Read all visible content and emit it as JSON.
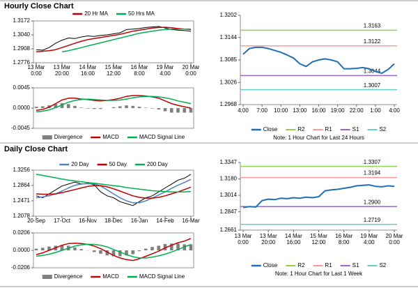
{
  "sections": [
    {
      "title": "Hourly Close Chart"
    },
    {
      "title": "Daily Close Chart"
    }
  ],
  "chart_data": [
    {
      "type": "line",
      "categories": [
        "13 Mar\n0:00",
        null,
        null,
        null,
        "13 Mar\n20:00",
        null,
        null,
        null,
        "14 Mar\n16:00",
        null,
        null,
        null,
        "15 Mar\n12:00",
        null,
        null,
        null,
        "16 Mar\n8:00",
        null,
        null,
        null,
        "19 Mar\n4:00",
        null,
        null,
        null,
        "20 Mar\n0:00"
      ],
      "values": [
        1.29,
        1.2895,
        1.292,
        1.296,
        1.299,
        1.301,
        1.3005,
        1.302,
        1.303,
        1.3025,
        1.3035,
        1.304,
        1.305,
        1.306,
        1.309,
        1.3095,
        1.31,
        1.311,
        1.3115,
        1.312,
        1.3105,
        1.309,
        1.3085,
        1.308,
        1.3075
      ],
      "color": "#000000",
      "series": [
        {
          "name": "20 Hr MA",
          "color": "#c00000",
          "values": [
            1.288,
            1.2885,
            1.289,
            1.29,
            1.292,
            1.294,
            1.296,
            1.298,
            1.2995,
            1.3005,
            1.3015,
            1.3025,
            1.3035,
            1.3045,
            1.306,
            1.3075,
            1.3085,
            1.3095,
            1.3105,
            1.311,
            1.3112,
            1.3108,
            1.31,
            1.3095,
            1.309
          ]
        },
        {
          "name": "50 Hrs MA",
          "color": "#00b050",
          "values": [
            null,
            null,
            null,
            null,
            1.288,
            1.289,
            1.2905,
            1.292,
            1.2935,
            1.295,
            1.2965,
            1.298,
            1.2995,
            1.301,
            1.3025,
            1.304,
            1.3055,
            1.3065,
            1.3075,
            1.3085,
            1.309,
            1.3095,
            1.3095,
            1.3095,
            1.3095
          ]
        }
      ],
      "ylim": [
        1.2776,
        1.3172
      ],
      "yticks": [
        1.2776,
        1.2908,
        {
          "value": 1.304,
          "label": "1.3040"
        },
        1.3172
      ]
    },
    {
      "type": "combo",
      "series": [
        {
          "name": "Divergence",
          "kind": "bar",
          "color": "#808080",
          "values": [
            0.0003,
            0.0004,
            0.0006,
            0.0009,
            0.0011,
            0.0009,
            0.0005,
            0.0001,
            -0.0001,
            -0.0002,
            -0.0002,
            0,
            0.0002,
            0.0004,
            0.0006,
            0.0005,
            0.0003,
            0.0001,
            -0.0001,
            -0.0003,
            -0.0007,
            -0.001,
            -0.001,
            -0.001,
            -0.001
          ]
        },
        {
          "name": "MACD",
          "kind": "line",
          "color": "#c00000",
          "values": [
            -0.0005,
            -0.0003,
            0.0002,
            0.001,
            0.0018,
            0.0022,
            0.0022,
            0.002,
            0.0019,
            0.0017,
            0.0016,
            0.0017,
            0.0019,
            0.0022,
            0.0026,
            0.0028,
            0.0028,
            0.0027,
            0.0025,
            0.0022,
            0.0016,
            0.001,
            0.0006,
            0.0003,
            0
          ]
        },
        {
          "name": "MACD Signal Line",
          "kind": "line",
          "color": "#00b050",
          "values": [
            -0.0008,
            -0.0007,
            -0.0004,
            0.0001,
            0.0007,
            0.0013,
            0.0017,
            0.0019,
            0.002,
            0.0019,
            0.0018,
            0.0017,
            0.0017,
            0.0018,
            0.002,
            0.0023,
            0.0025,
            0.0026,
            0.0026,
            0.0025,
            0.0023,
            0.002,
            0.0016,
            0.0013,
            0.001
          ]
        }
      ],
      "ylim": [
        -0.0045,
        0.0045
      ],
      "yticks": [
        -0.0045,
        {
          "value": 0,
          "label": "0.0000"
        },
        0.0045
      ]
    },
    {
      "type": "line",
      "categories": [
        "4:00",
        null,
        null,
        "7:00",
        null,
        null,
        "10:00",
        null,
        null,
        "13:00",
        null,
        null,
        "16:00",
        null,
        null,
        "19:00",
        null,
        null,
        "22:00",
        null,
        null,
        "1:00",
        null,
        null,
        "4:00"
      ],
      "series": [
        {
          "name": "Close",
          "color": "#1f6fb5",
          "values": [
            1.31,
            1.3115,
            1.3118,
            1.3118,
            1.3115,
            1.311,
            1.3105,
            1.3098,
            1.309,
            1.3075,
            1.3068,
            1.308,
            1.3085,
            1.3088,
            1.3085,
            1.308,
            1.3062,
            1.3062,
            1.3063,
            1.3065,
            1.3062,
            1.3055,
            1.305,
            1.306,
            1.3075
          ]
        }
      ],
      "levels": [
        {
          "name": "R2",
          "color": "#92d050",
          "value": 1.3163
        },
        {
          "name": "R1",
          "color": "#ff9999",
          "value": 1.3122
        },
        {
          "name": "S1",
          "color": "#9966cc",
          "value": 1.3044
        },
        {
          "name": "S2",
          "color": "#66cccc",
          "value": 1.3007
        }
      ],
      "ylim": [
        1.2968,
        1.3202
      ],
      "yticks": [
        1.2968,
        1.3026,
        1.3085,
        1.3144,
        1.3202
      ],
      "note": "Note: 1 Hour Chart for Last 24 Hours"
    },
    {
      "type": "line",
      "categories": [
        "20-Sep",
        null,
        null,
        null,
        "17-Oct",
        null,
        null,
        null,
        "16-Nov",
        null,
        null,
        null,
        "18-Dec",
        null,
        null,
        null,
        "16-Jan",
        null,
        null,
        null,
        "14-Feb",
        null,
        null,
        null,
        "16-Mar"
      ],
      "values": [
        1.26,
        1.255,
        1.265,
        1.275,
        1.285,
        1.29,
        1.295,
        1.29,
        1.292,
        1.288,
        1.27,
        1.26,
        1.255,
        1.245,
        1.24,
        1.235,
        1.245,
        1.255,
        1.26,
        1.27,
        1.28,
        1.29,
        1.3,
        1.305,
        1.315
      ],
      "color": "#000000",
      "series": [
        {
          "name": "20 Day",
          "color": "#4f81bd",
          "values": [
            1.255,
            1.257,
            1.26,
            1.265,
            1.272,
            1.28,
            1.287,
            1.29,
            1.291,
            1.29,
            1.285,
            1.275,
            1.265,
            1.255,
            1.247,
            1.242,
            1.242,
            1.247,
            1.254,
            1.262,
            1.27,
            1.279,
            1.287,
            1.294,
            1.302
          ]
        },
        {
          "name": "50 Day",
          "color": "#c00000",
          "values": [
            1.265,
            1.264,
            1.264,
            1.265,
            1.268,
            1.272,
            1.276,
            1.28,
            1.284,
            1.286,
            1.286,
            1.283,
            1.278,
            1.272,
            1.266,
            1.26,
            1.256,
            1.254,
            1.254,
            1.256,
            1.26,
            1.265,
            1.27,
            1.276,
            1.282
          ]
        },
        {
          "name": "200 Day",
          "color": "#00b050",
          "values": [
            1.315,
            1.312,
            1.309,
            1.306,
            1.303,
            1.3,
            1.298,
            1.296,
            1.294,
            1.292,
            1.29,
            1.288,
            1.286,
            1.284,
            1.281,
            1.279,
            1.277,
            1.275,
            1.273,
            1.272,
            1.271,
            1.27,
            1.27,
            1.27,
            1.271
          ]
        }
      ],
      "ylim": [
        1.2078,
        1.3256
      ],
      "yticks": [
        1.2078,
        1.2471,
        1.2864,
        1.3256
      ]
    },
    {
      "type": "combo",
      "series": [
        {
          "name": "Divergence",
          "kind": "bar",
          "color": "#808080",
          "values": [
            0.002,
            0.003,
            0.0045,
            0.0055,
            0.006,
            0.0055,
            0.0035,
            0.0015,
            -0.0002,
            -0.002,
            -0.004,
            -0.006,
            -0.007,
            -0.007,
            -0.006,
            -0.0045,
            -0.001,
            0.002,
            0.004,
            0.0055,
            0.0075,
            0.008,
            0.008,
            0.007,
            0.007
          ]
        },
        {
          "name": "MACD",
          "kind": "line",
          "color": "#c00000",
          "values": [
            -0.005,
            -0.003,
            0,
            0.003,
            0.006,
            0.008,
            0.0085,
            0.008,
            0.007,
            0.005,
            0.002,
            -0.002,
            -0.006,
            -0.009,
            -0.011,
            -0.012,
            -0.01,
            -0.007,
            -0.004,
            -0.001,
            0.003,
            0.006,
            0.009,
            0.011,
            0.014
          ]
        },
        {
          "name": "MACD Signal Line",
          "kind": "line",
          "color": "#00b050",
          "values": [
            -0.007,
            -0.006,
            -0.0045,
            -0.0025,
            0,
            0.0025,
            0.005,
            0.0065,
            0.0072,
            0.007,
            0.006,
            0.004,
            0.001,
            -0.002,
            -0.005,
            -0.0075,
            -0.009,
            -0.009,
            -0.008,
            -0.0065,
            -0.0045,
            -0.002,
            0.001,
            0.004,
            0.007
          ]
        }
      ],
      "ylim": [
        -0.0206,
        0.0206
      ],
      "yticks": [
        -0.0206,
        {
          "value": 0,
          "label": "0.0000"
        },
        0.0206
      ]
    },
    {
      "type": "line",
      "categories": [
        "13 Mar\n0:00",
        null,
        null,
        null,
        "13 Mar\n20:00",
        null,
        null,
        null,
        "14 Mar\n16:00",
        null,
        null,
        null,
        "15 Mar\n12:00",
        null,
        null,
        null,
        "16 Mar\n8:00",
        null,
        null,
        null,
        "19 Mar\n4:00",
        null,
        null,
        null,
        "20 Mar\n0:00"
      ],
      "series": [
        {
          "name": "Close",
          "color": "#1f6fb5",
          "values": [
            1.289,
            1.29,
            1.2895,
            1.296,
            1.2975,
            1.297,
            1.2985,
            1.298,
            1.299,
            1.2985,
            1.2995,
            1.299,
            1.3,
            1.306,
            1.307,
            1.3075,
            1.3085,
            1.3095,
            1.311,
            1.3115,
            1.312,
            1.3105,
            1.31,
            1.311,
            1.3105
          ]
        }
      ],
      "levels": [
        {
          "name": "R2",
          "color": "#92d050",
          "value": 1.3307
        },
        {
          "name": "R1",
          "color": "#ff9999",
          "value": 1.3194
        },
        {
          "name": "S1",
          "color": "#9966cc",
          "value": {
            "value": 1.29,
            "label": "1.2900"
          }
        },
        {
          "name": "S2",
          "color": "#66cccc",
          "value": 1.2719
        }
      ],
      "ylim": [
        1.2661,
        1.3347
      ],
      "yticks": [
        1.2661,
        1.2847,
        1.3014,
        {
          "value": 1.318,
          "label": "1.3180"
        },
        1.3347
      ],
      "note": "Note: 1 Hour Chart for Last 1 Week"
    }
  ]
}
